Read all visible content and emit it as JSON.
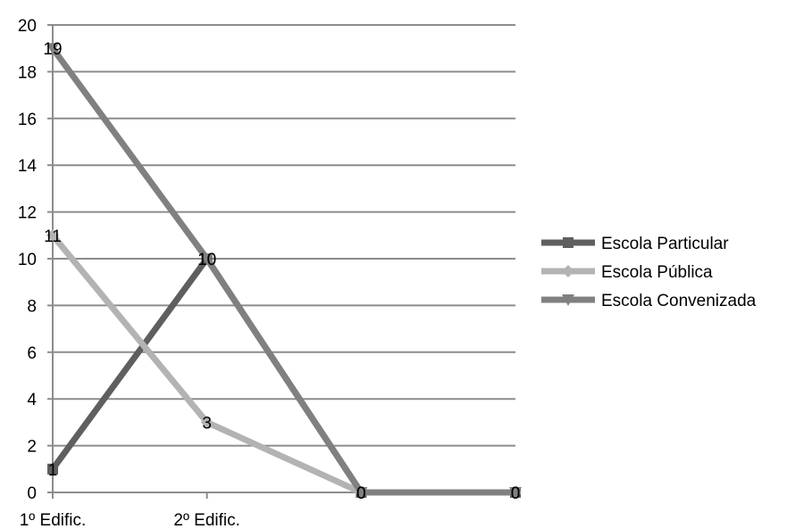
{
  "chart_data": {
    "type": "line",
    "categories": [
      "1º Edific.",
      "2º Edific.",
      "",
      ""
    ],
    "ylim": [
      0,
      20
    ],
    "yticks": [
      0,
      2,
      4,
      6,
      8,
      10,
      12,
      14,
      16,
      18,
      20
    ],
    "grid": true,
    "legend_position": "right",
    "series": [
      {
        "name": "Escola Particular",
        "values": [
          1,
          10,
          0,
          0
        ],
        "labels": [
          "1",
          "10",
          "0",
          "0"
        ],
        "color": "#5f5f5f",
        "marker": "square"
      },
      {
        "name": "Escola Pública",
        "values": [
          11,
          3,
          0,
          0
        ],
        "labels": [
          "11",
          "3",
          "0",
          "0"
        ],
        "color": "#b3b3b3",
        "marker": "diamond"
      },
      {
        "name": "Escola Convenizada",
        "values": [
          19,
          10,
          0,
          0
        ],
        "labels": [
          "19",
          "10",
          "0",
          "0"
        ],
        "color": "#808080",
        "marker": "triangle-down"
      }
    ]
  }
}
